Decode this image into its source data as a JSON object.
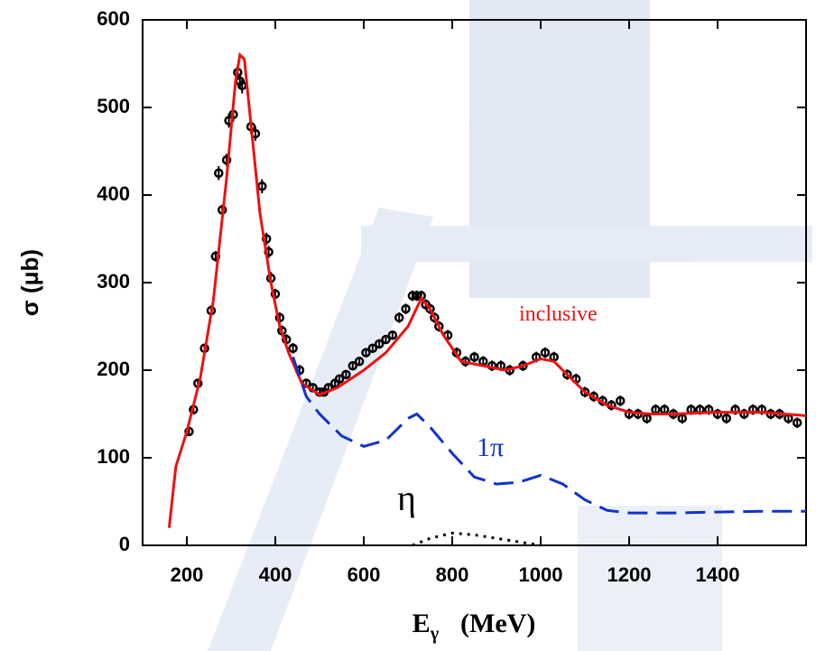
{
  "chart_data": {
    "type": "line",
    "y_label": "σ (μb)",
    "x_label": {
      "symbol": "E",
      "subscript": "γ",
      "unit": "(MeV)"
    },
    "xlim": [
      100,
      1600
    ],
    "xticks": [
      200,
      400,
      600,
      800,
      1000,
      1200,
      1400
    ],
    "ylim": [
      0,
      600
    ],
    "yticks": [
      0,
      100,
      200,
      300,
      400,
      500,
      600
    ],
    "series": [
      {
        "type": "scatter",
        "color": "#000000",
        "x": [
          205,
          215,
          225,
          240,
          255,
          265,
          272,
          280,
          290,
          295,
          305,
          315,
          320,
          325,
          345,
          355,
          370,
          380,
          385,
          390,
          400,
          410,
          415,
          425,
          440,
          455,
          470,
          485,
          500,
          510,
          520,
          535,
          545,
          560,
          575,
          590,
          605,
          620,
          635,
          650,
          665,
          680,
          695,
          710,
          720,
          730,
          740,
          750,
          760,
          770,
          790,
          810,
          830,
          850,
          870,
          890,
          910,
          930,
          960,
          990,
          1010,
          1030,
          1060,
          1080,
          1100,
          1120,
          1140,
          1160,
          1180,
          1200,
          1220,
          1240,
          1260,
          1280,
          1300,
          1320,
          1340,
          1360,
          1380,
          1400,
          1420,
          1440,
          1460,
          1480,
          1500,
          1520,
          1540,
          1560,
          1580
        ],
        "values": [
          130,
          155,
          185,
          225,
          268,
          330,
          425,
          383,
          440,
          485,
          492,
          540,
          530,
          525,
          478,
          470,
          410,
          350,
          335,
          305,
          287,
          260,
          245,
          235,
          225,
          200,
          185,
          180,
          175,
          175,
          180,
          185,
          190,
          195,
          205,
          210,
          220,
          225,
          230,
          235,
          240,
          260,
          270,
          285,
          285,
          285,
          275,
          270,
          260,
          250,
          240,
          220,
          210,
          215,
          210,
          205,
          205,
          200,
          205,
          215,
          220,
          215,
          195,
          190,
          175,
          170,
          165,
          160,
          165,
          150,
          150,
          145,
          155,
          155,
          150,
          145,
          155,
          155,
          155,
          150,
          145,
          155,
          150,
          155,
          155,
          150,
          150,
          145,
          140
        ],
        "errors": [
          4,
          5,
          5,
          5,
          6,
          6,
          8,
          6,
          7,
          8,
          8,
          9,
          9,
          9,
          8,
          8,
          8,
          7,
          7,
          7,
          6,
          6,
          6,
          6,
          6,
          6,
          5,
          5,
          5,
          5,
          5,
          5,
          5,
          5,
          5,
          5,
          5,
          5,
          5,
          5,
          5,
          6,
          6,
          6,
          6,
          6,
          6,
          6,
          6,
          6,
          6,
          6,
          6,
          6,
          6,
          6,
          6,
          6,
          6,
          6,
          6,
          6,
          6,
          6,
          6,
          6,
          6,
          6,
          6,
          6,
          6,
          6,
          6,
          6,
          6,
          6,
          6,
          6,
          6,
          6,
          6,
          6,
          6,
          6,
          6,
          6,
          6,
          6,
          6
        ]
      },
      {
        "type": "line",
        "name": "inclusive",
        "color": "#ee1111",
        "dash": "solid",
        "x": [
          160,
          175,
          200,
          230,
          260,
          290,
          310,
          320,
          330,
          345,
          365,
          390,
          410,
          430,
          460,
          500,
          540,
          600,
          650,
          700,
          730,
          750,
          780,
          820,
          870,
          920,
          960,
          1000,
          1030,
          1060,
          1100,
          1150,
          1200,
          1250,
          1300,
          1400,
          1500,
          1600
        ],
        "values": [
          20,
          90,
          130,
          190,
          280,
          420,
          530,
          560,
          555,
          480,
          380,
          300,
          250,
          220,
          185,
          172,
          180,
          200,
          220,
          250,
          282,
          270,
          240,
          210,
          205,
          200,
          205,
          213,
          210,
          195,
          175,
          160,
          152,
          150,
          150,
          152,
          152,
          148
        ]
      },
      {
        "type": "line",
        "name": "1π",
        "color": "#1133cc",
        "dash": "dashed",
        "x": [
          440,
          470,
          500,
          550,
          600,
          650,
          700,
          720,
          750,
          800,
          850,
          900,
          950,
          1000,
          1050,
          1100,
          1150,
          1200,
          1300,
          1400,
          1500,
          1600
        ],
        "values": [
          215,
          170,
          150,
          125,
          113,
          120,
          145,
          150,
          135,
          105,
          78,
          70,
          72,
          80,
          70,
          52,
          40,
          37,
          37,
          38,
          39,
          39
        ]
      },
      {
        "type": "line",
        "name": "η",
        "color": "#000000",
        "dash": "dotted",
        "x": [
          710,
          750,
          800,
          850,
          900,
          950,
          1000
        ],
        "values": [
          0,
          8,
          14,
          12,
          8,
          4,
          0
        ]
      }
    ]
  }
}
